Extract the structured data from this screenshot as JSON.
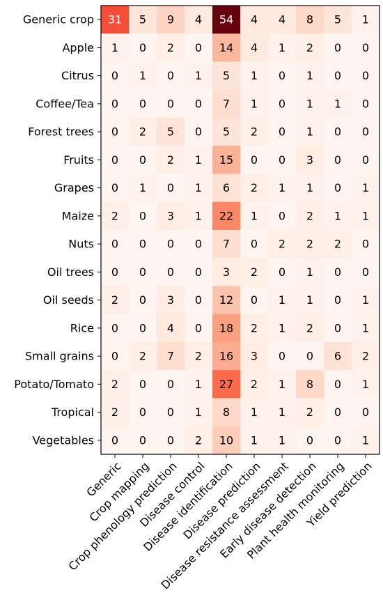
{
  "chart_data": {
    "type": "heatmap",
    "colormap": "Reds",
    "rows": [
      "Generic crop",
      "Apple",
      "Citrus",
      "Coffee/Tea",
      "Forest trees",
      "Fruits",
      "Grapes",
      "Maize",
      "Nuts",
      "Oil trees",
      "Oil seeds",
      "Rice",
      "Small grains",
      "Potato/Tomato",
      "Tropical",
      "Vegetables"
    ],
    "columns": [
      "Generic",
      "Crop mapping",
      "Crop phenology prediction",
      "Disease control",
      "Disease identification",
      "Disease prediction",
      "Disease resistance assessment",
      "Early disease detection",
      "Plant health monitoring",
      "Yield prediction"
    ],
    "values": [
      [
        31,
        5,
        9,
        4,
        54,
        4,
        4,
        8,
        5,
        1
      ],
      [
        1,
        0,
        2,
        0,
        14,
        4,
        1,
        2,
        0,
        0
      ],
      [
        0,
        1,
        0,
        1,
        5,
        1,
        0,
        1,
        0,
        0
      ],
      [
        0,
        0,
        0,
        0,
        7,
        1,
        0,
        1,
        1,
        0
      ],
      [
        0,
        2,
        5,
        0,
        5,
        2,
        0,
        1,
        0,
        0
      ],
      [
        0,
        0,
        2,
        1,
        15,
        0,
        0,
        3,
        0,
        0
      ],
      [
        0,
        1,
        0,
        1,
        6,
        2,
        1,
        1,
        0,
        1
      ],
      [
        2,
        0,
        3,
        1,
        22,
        1,
        0,
        2,
        1,
        1
      ],
      [
        0,
        0,
        0,
        0,
        7,
        0,
        2,
        2,
        2,
        0
      ],
      [
        0,
        0,
        0,
        0,
        3,
        2,
        0,
        1,
        0,
        0
      ],
      [
        2,
        0,
        3,
        0,
        12,
        0,
        1,
        1,
        0,
        1
      ],
      [
        0,
        0,
        4,
        0,
        18,
        2,
        1,
        2,
        0,
        1
      ],
      [
        0,
        2,
        7,
        2,
        16,
        3,
        0,
        0,
        6,
        2
      ],
      [
        2,
        0,
        0,
        1,
        27,
        2,
        1,
        8,
        0,
        1
      ],
      [
        2,
        0,
        0,
        1,
        8,
        1,
        1,
        2,
        0,
        0
      ],
      [
        0,
        0,
        0,
        2,
        10,
        1,
        1,
        0,
        0,
        1
      ]
    ]
  }
}
